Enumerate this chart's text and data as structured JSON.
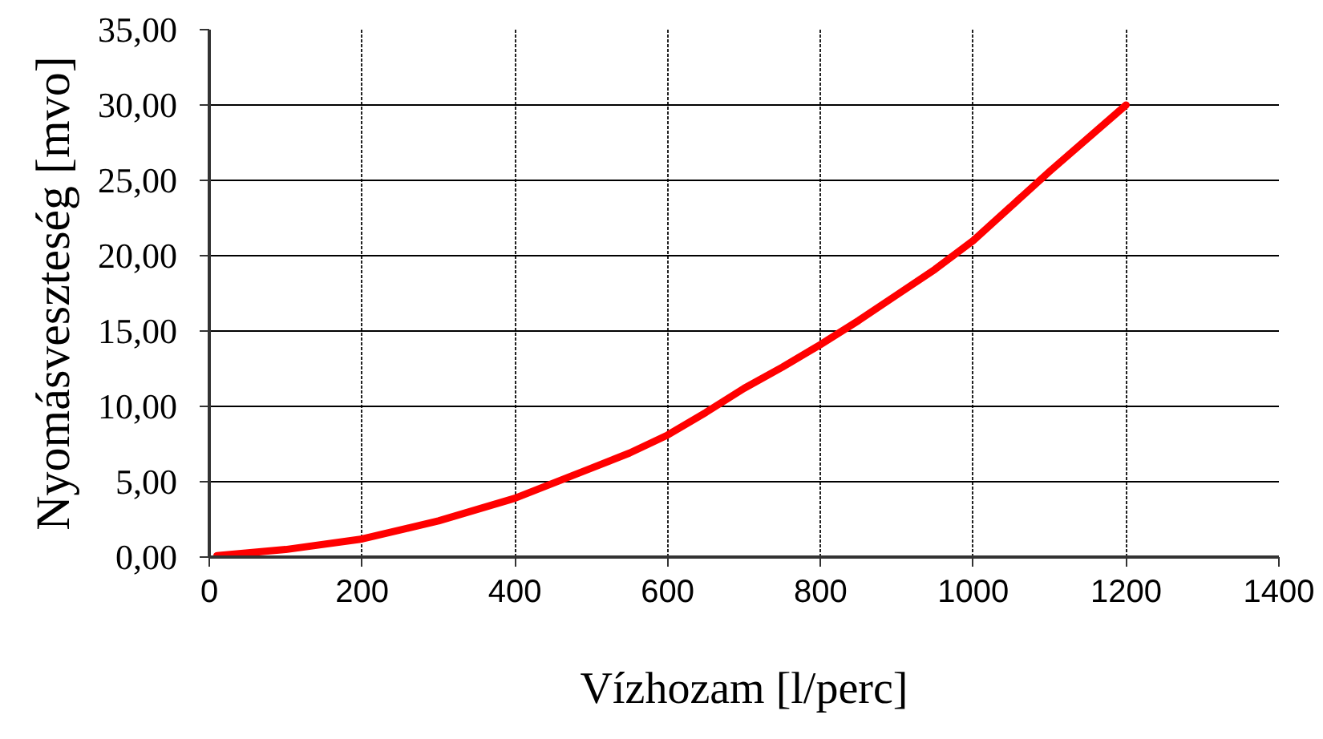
{
  "chart_data": {
    "type": "line",
    "xlabel": "Vízhozam [l/perc]",
    "ylabel": "Nyomásveszteség [mvo]",
    "x": [
      10,
      100,
      200,
      300,
      400,
      500,
      550,
      600,
      650,
      700,
      750,
      800,
      850,
      900,
      950,
      1000,
      1050,
      1100,
      1150,
      1200
    ],
    "series": [
      {
        "color": "#ff0000",
        "values": [
          0.1,
          0.5,
          1.2,
          2.4,
          3.9,
          5.9,
          6.9,
          8.1,
          9.6,
          11.2,
          12.6,
          14.1,
          15.7,
          17.4,
          19.1,
          21.0,
          23.3,
          25.6,
          27.8,
          30.0
        ]
      }
    ],
    "xlim": [
      0,
      1400
    ],
    "xticks": [
      0,
      200,
      400,
      600,
      800,
      1000,
      1200,
      1400
    ],
    "ylim": [
      0,
      35
    ],
    "yticks": [
      {
        "value": 0,
        "label": "0,00"
      },
      {
        "value": 5,
        "label": "5,00"
      },
      {
        "value": 10,
        "label": "10,00"
      },
      {
        "value": 15,
        "label": "15,00"
      },
      {
        "value": 20,
        "label": "20,00"
      },
      {
        "value": 25,
        "label": "25,00"
      },
      {
        "value": 30,
        "label": "30,00"
      },
      {
        "value": 35,
        "label": "35,00"
      }
    ],
    "grid": true,
    "marker": "none",
    "line_style": "solid"
  }
}
